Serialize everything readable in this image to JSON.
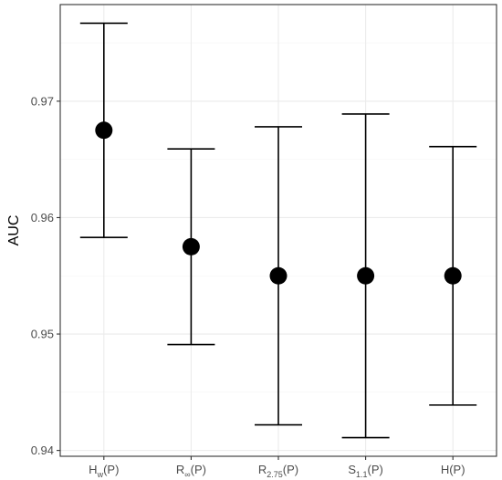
{
  "chart_data": {
    "type": "scatter",
    "xlabel": "",
    "ylabel": "AUC",
    "ylim": [
      0.9395,
      0.9783
    ],
    "yticks": [
      0.94,
      0.95,
      0.96,
      0.97
    ],
    "ytick_labels": [
      "0.94",
      "0.95",
      "0.96",
      "0.97"
    ],
    "grid": true,
    "categories": [
      {
        "main": "H",
        "sub": "w",
        "suffix": "(P)"
      },
      {
        "main": "R",
        "sub": "∞",
        "suffix": "(P)"
      },
      {
        "main": "R",
        "sub": "2.75",
        "suffix": "(P)"
      },
      {
        "main": "S",
        "sub": "1.1",
        "suffix": "(P)"
      },
      {
        "main": "H",
        "sub": "",
        "suffix": "(P)"
      }
    ],
    "points": [
      {
        "estimate": 0.9675,
        "lower": 0.9583,
        "upper": 0.9767
      },
      {
        "estimate": 0.9575,
        "lower": 0.9491,
        "upper": 0.9659
      },
      {
        "estimate": 0.955,
        "lower": 0.9422,
        "upper": 0.9678
      },
      {
        "estimate": 0.955,
        "lower": 0.9411,
        "upper": 0.9689
      },
      {
        "estimate": 0.955,
        "lower": 0.9439,
        "upper": 0.9661
      }
    ],
    "colors": {
      "panel_border": "#333333",
      "grid_major": "#ebebeb",
      "grid_minor": "#f5f5f5",
      "marks": "#000000"
    }
  }
}
